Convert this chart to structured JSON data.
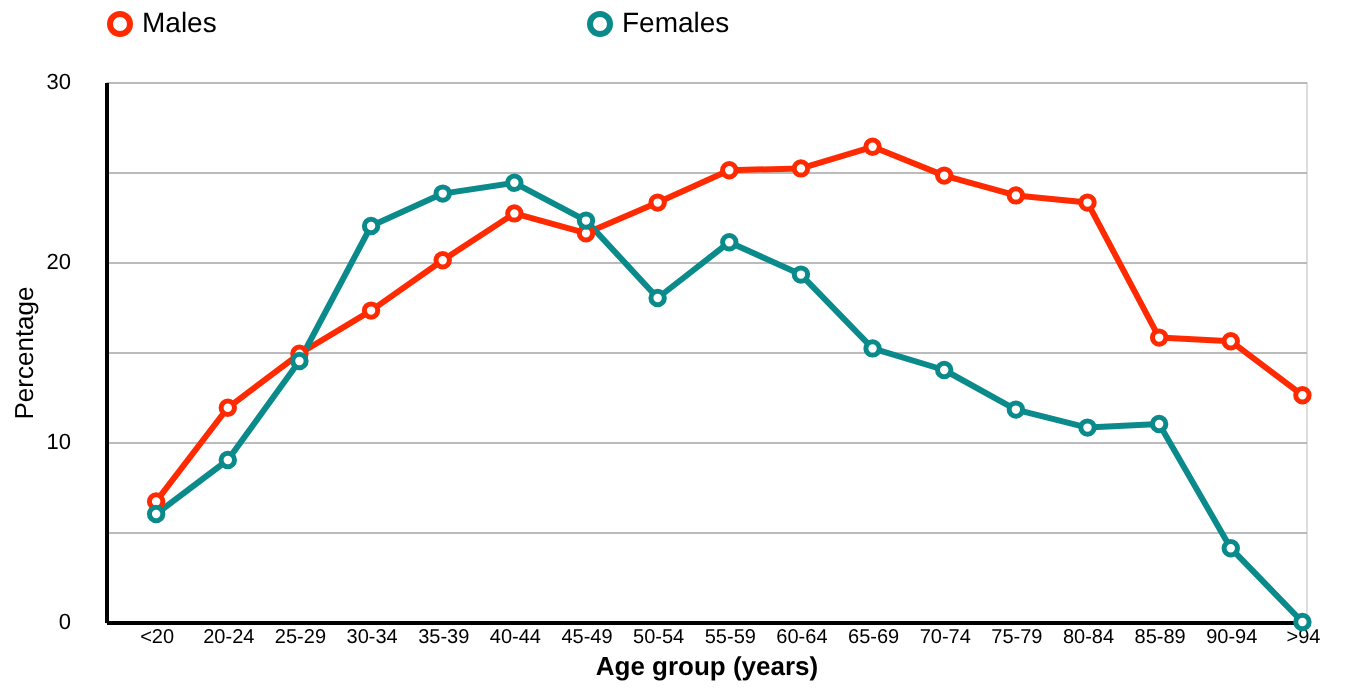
{
  "chart_data": {
    "type": "line",
    "xlabel": "Age group (years)",
    "ylabel": "Percentage",
    "categories": [
      "<20",
      "20-24",
      "25-29",
      "30-34",
      "35-39",
      "40-44",
      "45-49",
      "50-54",
      "55-59",
      "60-64",
      "65-69",
      "70-74",
      "75-79",
      "80-84",
      "85-89",
      "90-94",
      ">94"
    ],
    "series": [
      {
        "name": "Males",
        "color": "#ff2a00",
        "values": [
          6.7,
          11.9,
          14.9,
          17.3,
          20.1,
          22.7,
          21.6,
          23.3,
          25.1,
          25.2,
          26.4,
          24.8,
          23.7,
          23.3,
          15.8,
          15.6,
          12.6
        ]
      },
      {
        "name": "Females",
        "color": "#0a8a8a",
        "values": [
          6.0,
          9.0,
          14.5,
          22.0,
          23.8,
          24.4,
          22.3,
          18.0,
          21.1,
          19.3,
          15.2,
          14.0,
          11.8,
          10.8,
          11.0,
          4.1,
          0.0
        ]
      }
    ],
    "ylim": [
      0,
      30
    ],
    "yticks": [
      0,
      {
        "value": 5,
        "label": null
      },
      10,
      {
        "value": 15,
        "label": null
      },
      20,
      {
        "value": 25,
        "label": null
      },
      30
    ],
    "grid": "y",
    "legend": "top",
    "marker": "circle",
    "line_style": "solid"
  }
}
